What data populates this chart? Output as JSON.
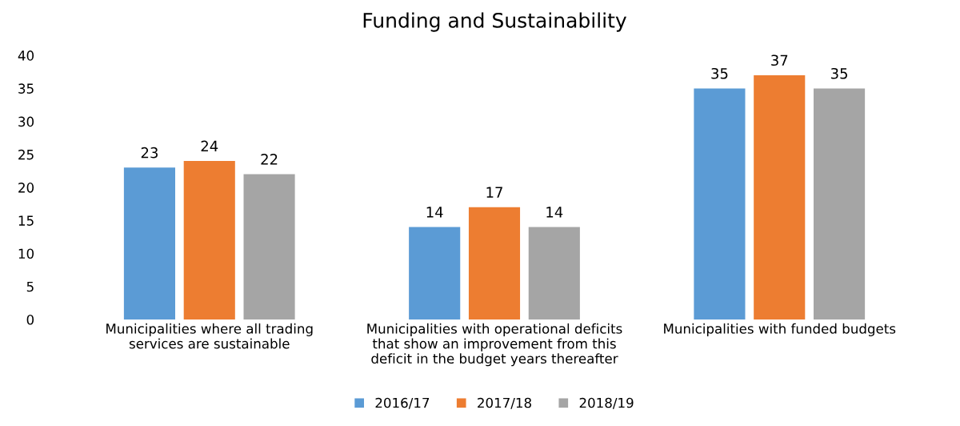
{
  "chart_data": {
    "type": "bar",
    "title": "Funding and Sustainability",
    "categories": [
      "Municipalities where all trading services are sustainable",
      "Municipalities with operational deficits that show an improvement from this deficit in the budget years thereafter",
      "Municipalities with funded budgets"
    ],
    "series": [
      {
        "name": "2016/17",
        "color": "#5b9bd5",
        "values": [
          23,
          14,
          35
        ]
      },
      {
        "name": "2017/18",
        "color": "#ed7d31",
        "values": [
          24,
          17,
          37
        ]
      },
      {
        "name": "2018/19",
        "color": "#a5a5a5",
        "values": [
          22,
          14,
          35
        ]
      }
    ],
    "ylim": [
      0,
      40
    ],
    "yticks": [
      0,
      5,
      10,
      15,
      20,
      25,
      30,
      35,
      40
    ],
    "grid": false,
    "legend": "bottom",
    "data_labels": true
  }
}
